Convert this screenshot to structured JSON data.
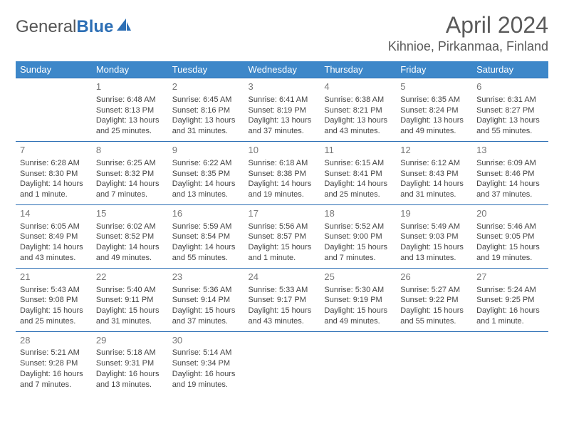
{
  "logo": {
    "part1": "General",
    "part2": "Blue"
  },
  "title": "April 2024",
  "location": "Kihnioe, Pirkanmaa, Finland",
  "colors": {
    "header_bg": "#3d87c9",
    "header_text": "#ffffff",
    "border": "#2d6fb5",
    "logo_accent": "#2d6fb5",
    "text": "#444444"
  },
  "weekdays": [
    "Sunday",
    "Monday",
    "Tuesday",
    "Wednesday",
    "Thursday",
    "Friday",
    "Saturday"
  ],
  "weeks": [
    [
      null,
      {
        "n": "1",
        "sr": "Sunrise: 6:48 AM",
        "ss": "Sunset: 8:13 PM",
        "dl": "Daylight: 13 hours and 25 minutes."
      },
      {
        "n": "2",
        "sr": "Sunrise: 6:45 AM",
        "ss": "Sunset: 8:16 PM",
        "dl": "Daylight: 13 hours and 31 minutes."
      },
      {
        "n": "3",
        "sr": "Sunrise: 6:41 AM",
        "ss": "Sunset: 8:19 PM",
        "dl": "Daylight: 13 hours and 37 minutes."
      },
      {
        "n": "4",
        "sr": "Sunrise: 6:38 AM",
        "ss": "Sunset: 8:21 PM",
        "dl": "Daylight: 13 hours and 43 minutes."
      },
      {
        "n": "5",
        "sr": "Sunrise: 6:35 AM",
        "ss": "Sunset: 8:24 PM",
        "dl": "Daylight: 13 hours and 49 minutes."
      },
      {
        "n": "6",
        "sr": "Sunrise: 6:31 AM",
        "ss": "Sunset: 8:27 PM",
        "dl": "Daylight: 13 hours and 55 minutes."
      }
    ],
    [
      {
        "n": "7",
        "sr": "Sunrise: 6:28 AM",
        "ss": "Sunset: 8:30 PM",
        "dl": "Daylight: 14 hours and 1 minute."
      },
      {
        "n": "8",
        "sr": "Sunrise: 6:25 AM",
        "ss": "Sunset: 8:32 PM",
        "dl": "Daylight: 14 hours and 7 minutes."
      },
      {
        "n": "9",
        "sr": "Sunrise: 6:22 AM",
        "ss": "Sunset: 8:35 PM",
        "dl": "Daylight: 14 hours and 13 minutes."
      },
      {
        "n": "10",
        "sr": "Sunrise: 6:18 AM",
        "ss": "Sunset: 8:38 PM",
        "dl": "Daylight: 14 hours and 19 minutes."
      },
      {
        "n": "11",
        "sr": "Sunrise: 6:15 AM",
        "ss": "Sunset: 8:41 PM",
        "dl": "Daylight: 14 hours and 25 minutes."
      },
      {
        "n": "12",
        "sr": "Sunrise: 6:12 AM",
        "ss": "Sunset: 8:43 PM",
        "dl": "Daylight: 14 hours and 31 minutes."
      },
      {
        "n": "13",
        "sr": "Sunrise: 6:09 AM",
        "ss": "Sunset: 8:46 PM",
        "dl": "Daylight: 14 hours and 37 minutes."
      }
    ],
    [
      {
        "n": "14",
        "sr": "Sunrise: 6:05 AM",
        "ss": "Sunset: 8:49 PM",
        "dl": "Daylight: 14 hours and 43 minutes."
      },
      {
        "n": "15",
        "sr": "Sunrise: 6:02 AM",
        "ss": "Sunset: 8:52 PM",
        "dl": "Daylight: 14 hours and 49 minutes."
      },
      {
        "n": "16",
        "sr": "Sunrise: 5:59 AM",
        "ss": "Sunset: 8:54 PM",
        "dl": "Daylight: 14 hours and 55 minutes."
      },
      {
        "n": "17",
        "sr": "Sunrise: 5:56 AM",
        "ss": "Sunset: 8:57 PM",
        "dl": "Daylight: 15 hours and 1 minute."
      },
      {
        "n": "18",
        "sr": "Sunrise: 5:52 AM",
        "ss": "Sunset: 9:00 PM",
        "dl": "Daylight: 15 hours and 7 minutes."
      },
      {
        "n": "19",
        "sr": "Sunrise: 5:49 AM",
        "ss": "Sunset: 9:03 PM",
        "dl": "Daylight: 15 hours and 13 minutes."
      },
      {
        "n": "20",
        "sr": "Sunrise: 5:46 AM",
        "ss": "Sunset: 9:05 PM",
        "dl": "Daylight: 15 hours and 19 minutes."
      }
    ],
    [
      {
        "n": "21",
        "sr": "Sunrise: 5:43 AM",
        "ss": "Sunset: 9:08 PM",
        "dl": "Daylight: 15 hours and 25 minutes."
      },
      {
        "n": "22",
        "sr": "Sunrise: 5:40 AM",
        "ss": "Sunset: 9:11 PM",
        "dl": "Daylight: 15 hours and 31 minutes."
      },
      {
        "n": "23",
        "sr": "Sunrise: 5:36 AM",
        "ss": "Sunset: 9:14 PM",
        "dl": "Daylight: 15 hours and 37 minutes."
      },
      {
        "n": "24",
        "sr": "Sunrise: 5:33 AM",
        "ss": "Sunset: 9:17 PM",
        "dl": "Daylight: 15 hours and 43 minutes."
      },
      {
        "n": "25",
        "sr": "Sunrise: 5:30 AM",
        "ss": "Sunset: 9:19 PM",
        "dl": "Daylight: 15 hours and 49 minutes."
      },
      {
        "n": "26",
        "sr": "Sunrise: 5:27 AM",
        "ss": "Sunset: 9:22 PM",
        "dl": "Daylight: 15 hours and 55 minutes."
      },
      {
        "n": "27",
        "sr": "Sunrise: 5:24 AM",
        "ss": "Sunset: 9:25 PM",
        "dl": "Daylight: 16 hours and 1 minute."
      }
    ],
    [
      {
        "n": "28",
        "sr": "Sunrise: 5:21 AM",
        "ss": "Sunset: 9:28 PM",
        "dl": "Daylight: 16 hours and 7 minutes."
      },
      {
        "n": "29",
        "sr": "Sunrise: 5:18 AM",
        "ss": "Sunset: 9:31 PM",
        "dl": "Daylight: 16 hours and 13 minutes."
      },
      {
        "n": "30",
        "sr": "Sunrise: 5:14 AM",
        "ss": "Sunset: 9:34 PM",
        "dl": "Daylight: 16 hours and 19 minutes."
      },
      null,
      null,
      null,
      null
    ]
  ]
}
